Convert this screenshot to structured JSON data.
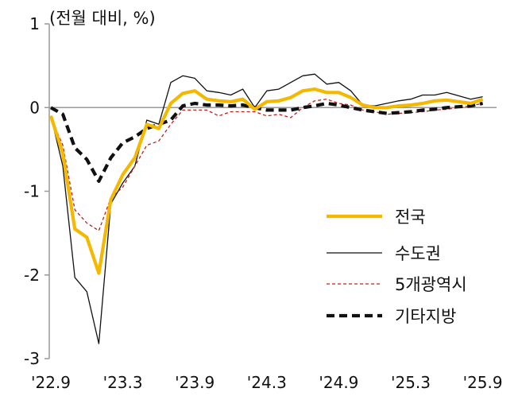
{
  "chart_data": {
    "type": "line",
    "unit_label": "(전월 대비, %)",
    "ylim": [
      -3,
      1
    ],
    "yticks": [
      1,
      0,
      -1,
      -2,
      -3
    ],
    "xtick_labels": [
      "'22.9",
      "'23.3",
      "'23.9",
      "'24.3",
      "'24.9",
      "'25.3",
      "'25.9"
    ],
    "x": [
      "22.09",
      "22.10",
      "22.11",
      "22.12",
      "23.01",
      "23.02",
      "23.03",
      "23.04",
      "23.05",
      "23.06",
      "23.07",
      "23.08",
      "23.09",
      "23.10",
      "23.11",
      "23.12",
      "24.01",
      "24.02",
      "24.03",
      "24.04",
      "24.05",
      "24.06",
      "24.07",
      "24.08",
      "24.09",
      "24.10",
      "24.11",
      "24.12",
      "25.01",
      "25.02",
      "25.03",
      "25.04",
      "25.05",
      "25.06",
      "25.07",
      "25.08",
      "25.09"
    ],
    "legend_position": "bottom-right",
    "series": [
      {
        "name": "전국",
        "color": "#F5B800",
        "style": "solid-thick",
        "values": [
          -0.1,
          -0.55,
          -1.45,
          -1.55,
          -1.98,
          -1.1,
          -0.8,
          -0.6,
          -0.2,
          -0.25,
          0.05,
          0.17,
          0.2,
          0.1,
          0.08,
          0.07,
          0.1,
          -0.02,
          0.07,
          0.08,
          0.12,
          0.2,
          0.22,
          0.18,
          0.18,
          0.12,
          0.03,
          0.0,
          0.0,
          0.02,
          0.03,
          0.05,
          0.08,
          0.09,
          0.07,
          0.05,
          0.1
        ]
      },
      {
        "name": "수도권",
        "color": "#111111",
        "style": "solid-thin",
        "values": [
          -0.1,
          -0.7,
          -2.03,
          -2.2,
          -2.82,
          -1.15,
          -0.9,
          -0.7,
          -0.15,
          -0.2,
          0.3,
          0.38,
          0.35,
          0.2,
          0.18,
          0.15,
          0.22,
          0.0,
          0.2,
          0.22,
          0.3,
          0.38,
          0.4,
          0.28,
          0.3,
          0.2,
          0.03,
          0.02,
          0.05,
          0.08,
          0.1,
          0.15,
          0.15,
          0.18,
          0.14,
          0.1,
          0.13
        ]
      },
      {
        "name": "5개광역시",
        "color": "#C0201C",
        "style": "dashed-thin",
        "values": [
          -0.12,
          -0.45,
          -1.22,
          -1.38,
          -1.47,
          -1.08,
          -0.95,
          -0.7,
          -0.45,
          -0.4,
          -0.2,
          -0.03,
          -0.03,
          -0.03,
          -0.1,
          -0.05,
          -0.05,
          -0.05,
          -0.1,
          -0.08,
          -0.12,
          0.0,
          0.08,
          0.1,
          0.05,
          0.03,
          -0.03,
          -0.05,
          -0.08,
          -0.07,
          -0.06,
          -0.05,
          -0.03,
          -0.02,
          0.0,
          0.02,
          0.05
        ]
      },
      {
        "name": "기타지방",
        "color": "#111111",
        "style": "dashed-thick",
        "values": [
          0.0,
          -0.08,
          -0.48,
          -0.62,
          -0.88,
          -0.6,
          -0.42,
          -0.35,
          -0.25,
          -0.2,
          -0.15,
          0.02,
          0.05,
          0.03,
          0.03,
          0.02,
          0.03,
          0.0,
          -0.03,
          -0.03,
          -0.03,
          0.0,
          0.02,
          0.05,
          0.03,
          0.0,
          -0.03,
          -0.05,
          -0.07,
          -0.06,
          -0.05,
          -0.03,
          -0.02,
          0.0,
          0.01,
          0.02,
          0.05
        ]
      }
    ]
  }
}
